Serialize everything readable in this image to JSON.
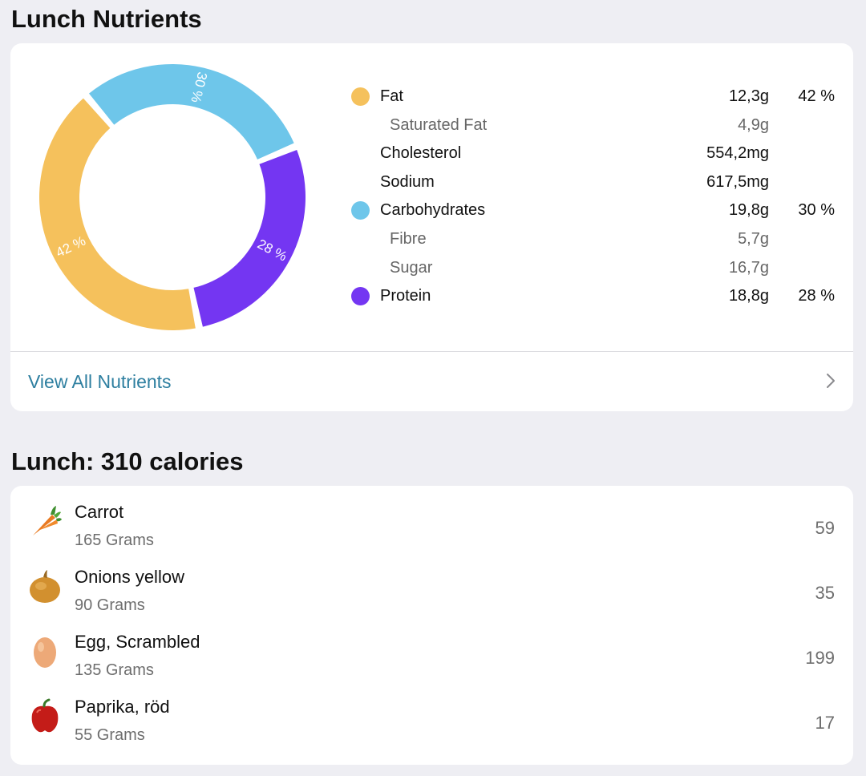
{
  "nutrients_section": {
    "title": "Lunch Nutrients",
    "view_all_label": "View All Nutrients"
  },
  "chart_data": {
    "type": "pie",
    "categories": [
      "Fat",
      "Carbohydrates",
      "Protein"
    ],
    "values": [
      42,
      30,
      28
    ],
    "labels": [
      "42 %",
      "30 %",
      "28 %"
    ],
    "colors": [
      "#f5c15c",
      "#6ec6ea",
      "#7436f2"
    ]
  },
  "legend": [
    {
      "name": "Fat",
      "amount": "12,3g",
      "pct": "42 %",
      "color": "#f5c15c",
      "sub": false
    },
    {
      "name": "Saturated Fat",
      "amount": "4,9g",
      "pct": "",
      "color": "",
      "sub": true
    },
    {
      "name": "Cholesterol",
      "amount": "554,2mg",
      "pct": "",
      "color": "",
      "sub": false
    },
    {
      "name": "Sodium",
      "amount": "617,5mg",
      "pct": "",
      "color": "",
      "sub": false
    },
    {
      "name": "Carbohydrates",
      "amount": "19,8g",
      "pct": "30 %",
      "color": "#6ec6ea",
      "sub": false
    },
    {
      "name": "Fibre",
      "amount": "5,7g",
      "pct": "",
      "color": "",
      "sub": true
    },
    {
      "name": "Sugar",
      "amount": "16,7g",
      "pct": "",
      "color": "",
      "sub": true
    },
    {
      "name": "Protein",
      "amount": "18,8g",
      "pct": "28 %",
      "color": "#7436f2",
      "sub": false
    }
  ],
  "lunch_section": {
    "title": "Lunch: 310 calories"
  },
  "foods": [
    {
      "name": "Carrot",
      "quantity": "165 Grams",
      "calories": "59",
      "icon": "carrot-icon"
    },
    {
      "name": "Onions yellow",
      "quantity": "90 Grams",
      "calories": "35",
      "icon": "onion-icon"
    },
    {
      "name": "Egg, Scrambled",
      "quantity": "135 Grams",
      "calories": "199",
      "icon": "egg-icon"
    },
    {
      "name": "Paprika, röd",
      "quantity": "55 Grams",
      "calories": "17",
      "icon": "bell-pepper-icon"
    }
  ]
}
